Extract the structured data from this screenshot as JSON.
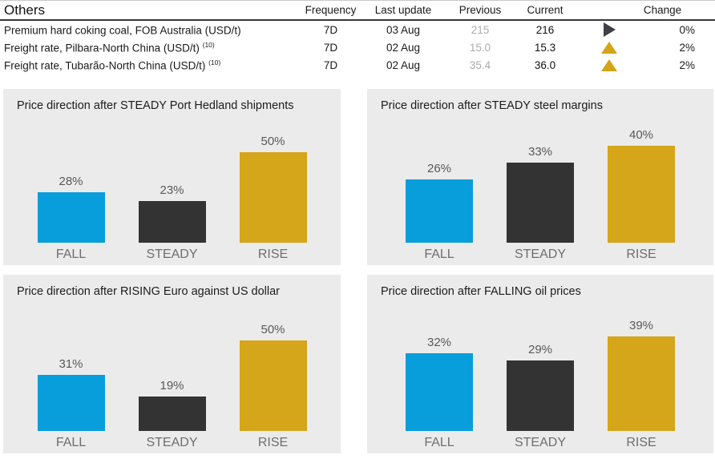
{
  "table": {
    "title": "Others",
    "headers": {
      "frequency": "Frequency",
      "last_update": "Last update",
      "previous": "Previous",
      "current": "Current",
      "change": "Change"
    },
    "rows": [
      {
        "label": "Premium hard coking coal, FOB Australia (USD/t)",
        "footnote": "",
        "frequency": "7D",
        "last_update": "03 Aug",
        "previous": "215",
        "current": "216",
        "change_direction": "steady",
        "change_pct": "0%"
      },
      {
        "label": "Freight rate, Pilbara-North China (USD/t)",
        "footnote": "(10)",
        "frequency": "7D",
        "last_update": "02 Aug",
        "previous": "15.0",
        "current": "15.3",
        "change_direction": "up",
        "change_pct": "2%"
      },
      {
        "label": "Freight rate, Tubarão-North China (USD/t)",
        "footnote": "(10)",
        "frequency": "7D",
        "last_update": "02 Aug",
        "previous": "35.4",
        "current": "36.0",
        "change_direction": "up",
        "change_pct": "2%"
      }
    ]
  },
  "chart_data": [
    {
      "type": "bar",
      "title": "Price direction after STEADY Port Hedland shipments",
      "categories": [
        "FALL",
        "STEADY",
        "RISE"
      ],
      "values": [
        28,
        23,
        50
      ],
      "value_labels": [
        "28%",
        "23%",
        "50%"
      ],
      "colors": [
        "#089edb",
        "#333333",
        "#d5a51a"
      ],
      "xlabel": "",
      "ylabel": "",
      "ylim": [
        0,
        60
      ],
      "grid": false,
      "legend": "none"
    },
    {
      "type": "bar",
      "title": "Price direction after STEADY steel margins",
      "categories": [
        "FALL",
        "STEADY",
        "RISE"
      ],
      "values": [
        26,
        33,
        40
      ],
      "value_labels": [
        "26%",
        "33%",
        "40%"
      ],
      "colors": [
        "#089edb",
        "#333333",
        "#d5a51a"
      ],
      "xlabel": "",
      "ylabel": "",
      "ylim": [
        0,
        45
      ],
      "grid": false,
      "legend": "none"
    },
    {
      "type": "bar",
      "title": "Price direction after RISING Euro against US dollar",
      "categories": [
        "FALL",
        "STEADY",
        "RISE"
      ],
      "values": [
        31,
        19,
        50
      ],
      "value_labels": [
        "31%",
        "19%",
        "50%"
      ],
      "colors": [
        "#089edb",
        "#333333",
        "#d5a51a"
      ],
      "xlabel": "",
      "ylabel": "",
      "ylim": [
        0,
        60
      ],
      "grid": false,
      "legend": "none"
    },
    {
      "type": "bar",
      "title": "Price direction after FALLING oil prices",
      "categories": [
        "FALL",
        "STEADY",
        "RISE"
      ],
      "values": [
        32,
        29,
        39
      ],
      "value_labels": [
        "32%",
        "29%",
        "39%"
      ],
      "colors": [
        "#089edb",
        "#333333",
        "#d5a51a"
      ],
      "xlabel": "",
      "ylabel": "",
      "ylim": [
        0,
        45
      ],
      "grid": false,
      "legend": "none"
    }
  ],
  "colors": {
    "bar_fall": "#089edb",
    "bar_steady": "#333333",
    "bar_rise": "#d5a51a",
    "change_up": "#d4a418",
    "change_steady": "#3f3f46",
    "panel_bg": "#ebebeb",
    "previous_text": "#ababab"
  }
}
